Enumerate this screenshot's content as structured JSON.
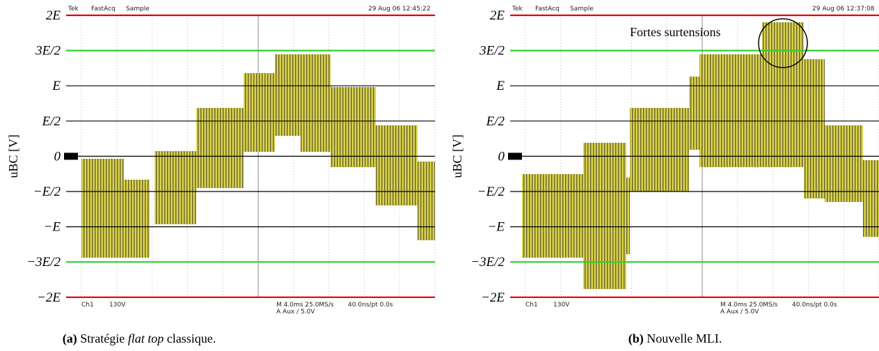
{
  "panels": [
    {
      "header": {
        "brand": "Tek",
        "mode": "FastAcq",
        "acquisition": "Sample",
        "timestamp": "29 Aug 06 12:45:22"
      },
      "y_axis": {
        "title": "uBC [V]",
        "labels": [
          "2E",
          "3E/2",
          "E",
          "E/2",
          "0",
          "−E/2",
          "−E",
          "−3E/2",
          "−2E"
        ]
      },
      "footer": {
        "channel": "Ch1",
        "scale": "130V",
        "timebase": "M 4.0ms 25.0MS/s",
        "sampling": "40.0ns/pt 0.0s",
        "trigger": "A Aux / 5.0V"
      },
      "caption": {
        "label": "(a)",
        "parts": [
          "Stratégie ",
          "flat top",
          " classique."
        ]
      }
    },
    {
      "header": {
        "brand": "Tek",
        "mode": "FastAcq",
        "acquisition": "Sample",
        "timestamp": "29 Aug 06 12:37:08"
      },
      "y_axis": {
        "title": "uBC [V]",
        "labels": [
          "2E",
          "3E/2",
          "E",
          "E/2",
          "0",
          "−E/2",
          "−E",
          "−3E/2",
          "−2E"
        ]
      },
      "footer": {
        "channel": "Ch1",
        "scale": "130V",
        "timebase": "M 4.0ms 25.0MS/s",
        "sampling": "40.0ns/pt 0.0s",
        "trigger": "A Aux / 5.0V"
      },
      "annotation": "Fortes surtensions",
      "caption": {
        "label": "(b)",
        "parts": [
          "Nouvelle MLI."
        ]
      }
    }
  ]
}
